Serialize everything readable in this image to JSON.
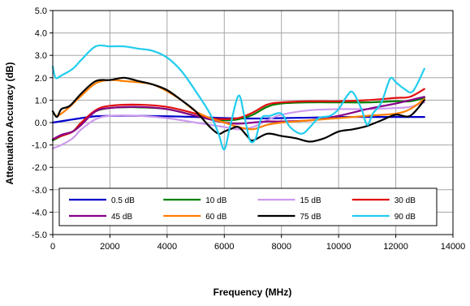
{
  "chart_data": {
    "type": "line",
    "xlabel": "Frequency (MHz)",
    "ylabel": "Attenuation Accuracy (dB)",
    "xlim": [
      0,
      14000
    ],
    "ylim": [
      -5,
      5
    ],
    "xticks": [
      "0",
      "2000",
      "4000",
      "6000",
      "8000",
      "10000",
      "12000",
      "14000"
    ],
    "yticks": [
      "5.0",
      "4.0",
      "3.0",
      "2.0",
      "1.0",
      "0.0",
      "-1.0",
      "-2.0",
      "-3.0",
      "-4.0",
      "-5.0"
    ],
    "grid": true,
    "legend_placement": "bottom-inside",
    "series": [
      {
        "name": "0.5 dB",
        "color": "#0000cc",
        "x": [
          0,
          500,
          1000,
          1500,
          2000,
          3000,
          4000,
          5000,
          6000,
          7000,
          8000,
          9000,
          10000,
          11000,
          12000,
          13000
        ],
        "y": [
          0.0,
          0.1,
          0.2,
          0.28,
          0.3,
          0.3,
          0.28,
          0.25,
          0.2,
          0.18,
          0.2,
          0.22,
          0.25,
          0.25,
          0.25,
          0.25
        ]
      },
      {
        "name": "10 dB",
        "color": "#008000",
        "x": [
          0,
          300,
          700,
          1000,
          1500,
          2000,
          2500,
          3000,
          4000,
          5000,
          5500,
          6000,
          6500,
          7000,
          7500,
          8000,
          9000,
          10000,
          11000,
          12000,
          12500,
          13000
        ],
        "y": [
          -0.8,
          -0.6,
          -0.4,
          0.0,
          0.5,
          0.65,
          0.68,
          0.68,
          0.6,
          0.3,
          0.15,
          0.1,
          0.15,
          0.35,
          0.7,
          0.85,
          0.9,
          0.9,
          0.9,
          0.95,
          0.95,
          1.1
        ]
      },
      {
        "name": "15 dB",
        "color": "#cc99ee",
        "x": [
          0,
          300,
          700,
          1000,
          1500,
          2000,
          3000,
          4000,
          5000,
          6000,
          6500,
          7000,
          7500,
          8000,
          9000,
          10000,
          11000,
          12000,
          12500,
          13000
        ],
        "y": [
          -1.15,
          -1.0,
          -0.7,
          -0.3,
          0.15,
          0.3,
          0.3,
          0.2,
          0.0,
          -0.2,
          -0.3,
          -0.2,
          0.1,
          0.35,
          0.55,
          0.6,
          0.6,
          0.65,
          0.7,
          0.9
        ]
      },
      {
        "name": "30 dB",
        "color": "#e01010",
        "x": [
          0,
          300,
          700,
          1000,
          1500,
          2000,
          3000,
          4000,
          5000,
          5500,
          6000,
          6500,
          7000,
          7500,
          8000,
          9000,
          10000,
          11000,
          12000,
          12500,
          13000
        ],
        "y": [
          -0.75,
          -0.6,
          -0.4,
          0.0,
          0.55,
          0.75,
          0.8,
          0.7,
          0.4,
          0.2,
          0.15,
          0.2,
          0.45,
          0.8,
          0.9,
          0.95,
          0.95,
          1.0,
          1.1,
          1.15,
          1.5
        ]
      },
      {
        "name": "45 dB",
        "color": "#880088",
        "x": [
          0,
          300,
          700,
          1000,
          1500,
          2000,
          3000,
          4000,
          5000,
          6000,
          6500,
          7000,
          7500,
          8000,
          9000,
          10000,
          11000,
          12000,
          12500,
          13000
        ],
        "y": [
          -0.75,
          -0.55,
          -0.4,
          -0.1,
          0.5,
          0.65,
          0.7,
          0.6,
          0.3,
          0.0,
          -0.05,
          0.0,
          0.05,
          0.05,
          0.1,
          0.3,
          0.6,
          0.85,
          1.0,
          1.15
        ]
      },
      {
        "name": "60 dB",
        "color": "#ff7f00",
        "x": [
          0,
          150,
          500,
          1000,
          1500,
          2000,
          2500,
          3000,
          3500,
          4000,
          4500,
          5000,
          5500,
          6000,
          6500,
          7000,
          7500,
          8000,
          9000,
          10000,
          11000,
          12000,
          12500,
          13000
        ],
        "y": [
          0.5,
          0.3,
          0.6,
          1.2,
          1.75,
          1.9,
          1.85,
          1.8,
          1.7,
          1.4,
          1.0,
          0.5,
          0.2,
          0.0,
          -0.2,
          -0.3,
          -0.1,
          0.0,
          0.1,
          0.2,
          0.3,
          0.4,
          0.6,
          1.05
        ]
      },
      {
        "name": "75 dB",
        "color": "#000000",
        "x": [
          0,
          150,
          300,
          600,
          1000,
          1500,
          2000,
          2500,
          3000,
          3500,
          4000,
          4500,
          5000,
          5500,
          5800,
          6000,
          6200,
          6500,
          6800,
          7000,
          7500,
          8000,
          8500,
          9000,
          9500,
          10000,
          10500,
          11000,
          11500,
          12000,
          12500,
          13000
        ],
        "y": [
          0.5,
          0.25,
          0.6,
          0.75,
          1.3,
          1.85,
          1.9,
          2.0,
          1.85,
          1.7,
          1.45,
          1.0,
          0.5,
          -0.2,
          -0.5,
          -0.4,
          -0.3,
          -0.2,
          -0.6,
          -0.8,
          -0.5,
          -0.6,
          -0.7,
          -0.85,
          -0.7,
          -0.4,
          -0.3,
          -0.15,
          0.1,
          0.35,
          0.3,
          1.0
        ]
      },
      {
        "name": "90 dB",
        "color": "#22ccee",
        "x": [
          0,
          100,
          300,
          700,
          1000,
          1500,
          2000,
          2500,
          3000,
          3500,
          4000,
          4500,
          5000,
          5500,
          5800,
          6000,
          6200,
          6500,
          6700,
          6900,
          7100,
          7300,
          7600,
          8000,
          8300,
          8700,
          9000,
          9300,
          9700,
          10000,
          10300,
          10500,
          10800,
          11000,
          11200,
          11500,
          11800,
          12000,
          12300,
          12600,
          13000
        ],
        "y": [
          2.5,
          2.0,
          2.1,
          2.4,
          2.8,
          3.4,
          3.4,
          3.4,
          3.3,
          3.2,
          2.9,
          2.3,
          1.4,
          0.4,
          -0.5,
          -1.2,
          -0.2,
          1.2,
          0.3,
          -0.8,
          -0.7,
          0.2,
          0.3,
          0.4,
          -0.2,
          -0.5,
          -0.2,
          0.2,
          0.3,
          0.6,
          1.2,
          1.35,
          0.6,
          -0.1,
          0.4,
          0.9,
          1.95,
          1.8,
          1.5,
          1.4,
          2.4
        ]
      }
    ]
  }
}
